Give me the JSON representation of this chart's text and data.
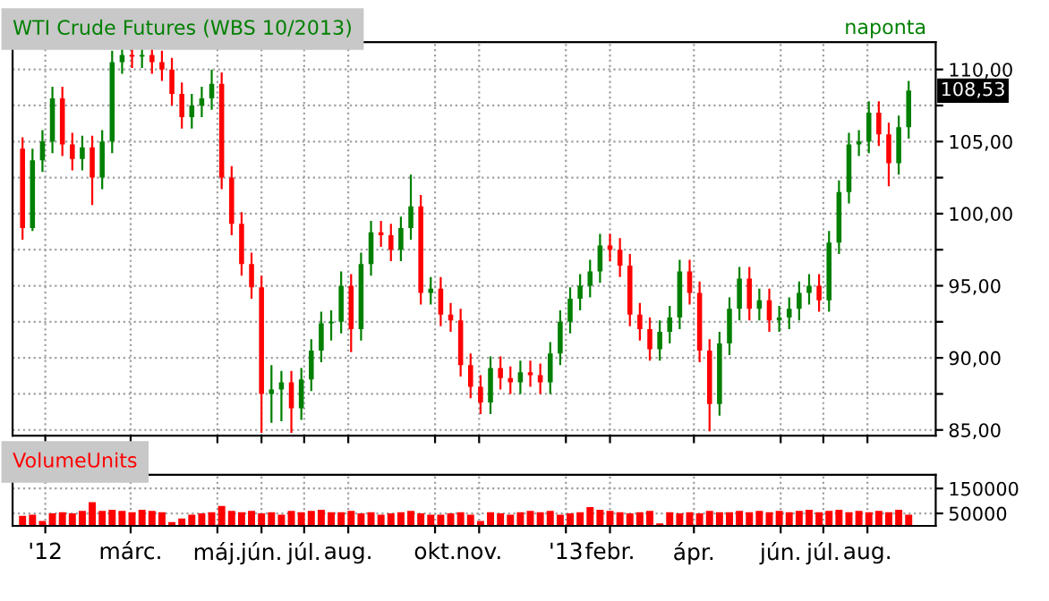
{
  "chart_data": [
    {
      "type": "candlestick",
      "title": "WTI Crude Futures (WBS 10/2013)",
      "annotations": [
        "naponta",
        {
          "text": "108,53",
          "x": "2013-08-30",
          "y": 108.53
        }
      ],
      "x": [
        "2011-12-16",
        "2011-12-23",
        "2011-12-30",
        "2012-01-06",
        "2012-01-13",
        "2012-01-20",
        "2012-01-27",
        "2012-02-03",
        "2012-02-10",
        "2012-02-17",
        "2012-02-24",
        "2012-03-02",
        "2012-03-09",
        "2012-03-16",
        "2012-03-23",
        "2012-03-30",
        "2012-04-06",
        "2012-04-13",
        "2012-04-20",
        "2012-04-27",
        "2012-05-04",
        "2012-05-11",
        "2012-05-18",
        "2012-05-25",
        "2012-06-01",
        "2012-06-08",
        "2012-06-15",
        "2012-06-22",
        "2012-06-29",
        "2012-07-06",
        "2012-07-13",
        "2012-07-20",
        "2012-07-27",
        "2012-08-03",
        "2012-08-10",
        "2012-08-17",
        "2012-08-24",
        "2012-08-31",
        "2012-09-07",
        "2012-09-14",
        "2012-09-21",
        "2012-09-28",
        "2012-10-05",
        "2012-10-12",
        "2012-10-19",
        "2012-10-26",
        "2012-11-02",
        "2012-11-09",
        "2012-11-16",
        "2012-11-23",
        "2012-11-30",
        "2012-12-07",
        "2012-12-14",
        "2012-12-21",
        "2012-12-28",
        "2013-01-04",
        "2013-01-11",
        "2013-01-18",
        "2013-01-25",
        "2013-02-01",
        "2013-02-08",
        "2013-02-15",
        "2013-02-22",
        "2013-03-01",
        "2013-03-08",
        "2013-03-15",
        "2013-03-22",
        "2013-03-29",
        "2013-04-05",
        "2013-04-12",
        "2013-04-19",
        "2013-04-26",
        "2013-05-03",
        "2013-05-10",
        "2013-05-17",
        "2013-05-24",
        "2013-05-31",
        "2013-06-07",
        "2013-06-14",
        "2013-06-21",
        "2013-06-28",
        "2013-07-05",
        "2013-07-12",
        "2013-07-19",
        "2013-07-26",
        "2013-08-02",
        "2013-08-09",
        "2013-08-16",
        "2013-08-23",
        "2013-08-30"
      ],
      "ohlc": [
        [
          104.5,
          105.3,
          98.2,
          99.0
        ],
        [
          99.0,
          104.5,
          98.8,
          103.7
        ],
        [
          103.7,
          105.8,
          102.9,
          105.0
        ],
        [
          105.0,
          108.8,
          104.2,
          108.0
        ],
        [
          108.0,
          108.8,
          104.0,
          104.8
        ],
        [
          104.8,
          105.6,
          103.0,
          103.8
        ],
        [
          103.8,
          105.4,
          103.0,
          104.6
        ],
        [
          104.6,
          105.4,
          100.6,
          102.5
        ],
        [
          102.5,
          105.8,
          101.7,
          105.0
        ],
        [
          105.0,
          111.3,
          104.2,
          110.5
        ],
        [
          110.5,
          111.4,
          109.7,
          111.0
        ],
        [
          111.0,
          111.4,
          110.1,
          110.9
        ],
        [
          110.9,
          111.4,
          110.1,
          111.0
        ],
        [
          111.0,
          111.4,
          109.7,
          110.5
        ],
        [
          110.5,
          111.3,
          109.2,
          110.0
        ],
        [
          110.0,
          110.8,
          107.5,
          108.3
        ],
        [
          108.3,
          109.1,
          105.9,
          106.7
        ],
        [
          106.7,
          108.3,
          105.9,
          107.5
        ],
        [
          107.5,
          108.8,
          106.7,
          108.0
        ],
        [
          108.0,
          110.0,
          107.2,
          109.0
        ],
        [
          109.0,
          109.8,
          101.7,
          102.5
        ],
        [
          102.5,
          103.3,
          98.5,
          99.3
        ],
        [
          99.3,
          100.1,
          95.7,
          96.5
        ],
        [
          96.5,
          97.3,
          94.1,
          94.9
        ],
        [
          94.9,
          95.7,
          84.8,
          87.5
        ],
        [
          87.5,
          89.5,
          85.5,
          87.8
        ],
        [
          87.8,
          89.1,
          85.6,
          88.3
        ],
        [
          88.3,
          89.1,
          84.8,
          86.5
        ],
        [
          86.5,
          89.3,
          85.7,
          88.5
        ],
        [
          88.5,
          91.3,
          87.7,
          90.5
        ],
        [
          90.5,
          93.2,
          89.7,
          92.4
        ],
        [
          92.4,
          93.3,
          91.2,
          92.5
        ],
        [
          92.5,
          96.0,
          91.7,
          95.0
        ],
        [
          95.0,
          95.8,
          90.4,
          92.0
        ],
        [
          92.0,
          97.3,
          91.2,
          96.5
        ],
        [
          96.5,
          99.5,
          95.7,
          98.7
        ],
        [
          98.7,
          99.5,
          97.7,
          98.5
        ],
        [
          98.5,
          99.3,
          96.7,
          97.5
        ],
        [
          97.5,
          99.8,
          96.7,
          99.0
        ],
        [
          99.0,
          102.7,
          98.2,
          100.5
        ],
        [
          100.5,
          101.3,
          93.7,
          94.5
        ],
        [
          94.5,
          95.6,
          93.7,
          94.8
        ],
        [
          94.8,
          95.6,
          92.2,
          93.0
        ],
        [
          93.0,
          93.8,
          91.8,
          92.6
        ],
        [
          92.6,
          93.4,
          88.7,
          89.5
        ],
        [
          89.5,
          90.3,
          87.2,
          88.0
        ],
        [
          88.0,
          88.8,
          86.1,
          86.9
        ],
        [
          86.9,
          90.1,
          86.1,
          89.3
        ],
        [
          89.3,
          90.1,
          87.8,
          88.6
        ],
        [
          88.6,
          89.4,
          87.5,
          88.3
        ],
        [
          88.3,
          89.8,
          87.5,
          89.0
        ],
        [
          89.0,
          89.8,
          88.0,
          88.8
        ],
        [
          88.8,
          89.6,
          87.5,
          88.3
        ],
        [
          88.3,
          91.1,
          87.5,
          90.3
        ],
        [
          90.3,
          93.3,
          89.5,
          92.5
        ],
        [
          92.5,
          94.9,
          91.7,
          94.1
        ],
        [
          94.1,
          95.8,
          93.3,
          95.0
        ],
        [
          95.0,
          96.8,
          94.2,
          96.0
        ],
        [
          96.0,
          98.6,
          95.2,
          97.8
        ],
        [
          97.8,
          98.6,
          96.7,
          97.5
        ],
        [
          97.5,
          98.3,
          95.6,
          96.4
        ],
        [
          96.4,
          97.2,
          92.2,
          93.0
        ],
        [
          93.0,
          93.8,
          91.2,
          92.0
        ],
        [
          92.0,
          92.8,
          89.8,
          90.6
        ],
        [
          90.6,
          92.6,
          89.8,
          91.8
        ],
        [
          91.8,
          93.6,
          91.0,
          92.8
        ],
        [
          92.8,
          96.8,
          92.0,
          96.0
        ],
        [
          96.0,
          96.8,
          93.7,
          94.5
        ],
        [
          94.5,
          95.3,
          89.7,
          90.5
        ],
        [
          90.5,
          91.3,
          84.9,
          86.8
        ],
        [
          86.8,
          91.8,
          86.0,
          91.0
        ],
        [
          91.0,
          94.2,
          90.2,
          93.4
        ],
        [
          93.4,
          96.3,
          92.6,
          95.5
        ],
        [
          95.5,
          96.3,
          92.6,
          93.4
        ],
        [
          93.4,
          94.8,
          92.6,
          94.0
        ],
        [
          94.0,
          94.8,
          91.8,
          92.6
        ],
        [
          92.6,
          93.6,
          91.8,
          92.8
        ],
        [
          92.8,
          94.2,
          92.0,
          93.4
        ],
        [
          93.4,
          95.3,
          92.6,
          94.5
        ],
        [
          94.5,
          95.8,
          93.7,
          95.0
        ],
        [
          95.0,
          95.8,
          93.2,
          94.0
        ],
        [
          94.0,
          98.8,
          93.2,
          98.0
        ],
        [
          98.0,
          102.3,
          97.2,
          101.5
        ],
        [
          101.5,
          105.6,
          100.7,
          104.8
        ],
        [
          104.8,
          105.8,
          104.0,
          105.0
        ],
        [
          105.0,
          107.8,
          104.2,
          107.0
        ],
        [
          107.0,
          107.8,
          104.7,
          105.5
        ],
        [
          105.5,
          106.3,
          101.9,
          103.5
        ],
        [
          103.5,
          106.8,
          102.7,
          106.0
        ],
        [
          106.0,
          109.2,
          105.2,
          108.53
        ]
      ],
      "colors": [
        "#ff0000",
        "#008000",
        "#008000",
        "#008000",
        "#ff0000",
        "#ff0000",
        "#008000",
        "#ff0000",
        "#008000",
        "#008000",
        "#008000",
        "#ff0000",
        "#008000",
        "#ff0000",
        "#ff0000",
        "#ff0000",
        "#ff0000",
        "#008000",
        "#008000",
        "#008000",
        "#ff0000",
        "#ff0000",
        "#ff0000",
        "#ff0000",
        "#ff0000",
        "#008000",
        "#008000",
        "#ff0000",
        "#008000",
        "#008000",
        "#008000",
        "#008000",
        "#008000",
        "#ff0000",
        "#008000",
        "#008000",
        "#ff0000",
        "#ff0000",
        "#008000",
        "#008000",
        "#ff0000",
        "#008000",
        "#ff0000",
        "#ff0000",
        "#ff0000",
        "#ff0000",
        "#ff0000",
        "#008000",
        "#ff0000",
        "#ff0000",
        "#008000",
        "#ff0000",
        "#ff0000",
        "#008000",
        "#008000",
        "#008000",
        "#008000",
        "#008000",
        "#008000",
        "#ff0000",
        "#ff0000",
        "#ff0000",
        "#ff0000",
        "#ff0000",
        "#008000",
        "#008000",
        "#008000",
        "#ff0000",
        "#ff0000",
        "#ff0000",
        "#008000",
        "#008000",
        "#008000",
        "#ff0000",
        "#008000",
        "#ff0000",
        "#008000",
        "#008000",
        "#008000",
        "#008000",
        "#ff0000",
        "#008000",
        "#008000",
        "#008000",
        "#008000",
        "#008000",
        "#ff0000",
        "#ff0000",
        "#008000",
        "#008000"
      ],
      "xlim": [
        "2011-12-09",
        "2013-09-18"
      ],
      "ylim": [
        84.6,
        111.9
      ],
      "yticks": [
        {
          "value": 85,
          "label": "85,00"
        },
        {
          "value": 87.5,
          "label": null
        },
        {
          "value": 90,
          "label": "90,00"
        },
        {
          "value": 92.5,
          "label": null
        },
        {
          "value": 95,
          "label": "95,00"
        },
        {
          "value": 97.5,
          "label": null
        },
        {
          "value": 100,
          "label": "100,00"
        },
        {
          "value": 102.5,
          "label": null
        },
        {
          "value": 105,
          "label": "105,00"
        },
        {
          "value": 107.5,
          "label": null
        },
        {
          "value": 110,
          "label": "110,00"
        }
      ],
      "xticks": [
        {
          "value": "2012-01-01",
          "label": null
        },
        {
          "value": "2012-03-01",
          "label": null
        },
        {
          "value": "2012-05-01",
          "label": null
        },
        {
          "value": "2012-06-01",
          "label": null
        },
        {
          "value": "2012-07-01",
          "label": null
        },
        {
          "value": "2012-08-01",
          "label": null
        },
        {
          "value": "2012-10-01",
          "label": null
        },
        {
          "value": "2012-11-01",
          "label": null
        },
        {
          "value": "2013-01-01",
          "label": null
        },
        {
          "value": "2013-02-01",
          "label": null
        },
        {
          "value": "2013-04-01",
          "label": null
        },
        {
          "value": "2013-06-01",
          "label": null
        },
        {
          "value": "2013-07-01",
          "label": null
        },
        {
          "value": "2013-08-01",
          "label": null
        }
      ],
      "tick_labels": "y",
      "grid": true
    },
    {
      "type": "bar",
      "title": "VolumeUnits",
      "x": [
        "2011-12-16",
        "2011-12-23",
        "2011-12-30",
        "2012-01-06",
        "2012-01-13",
        "2012-01-20",
        "2012-01-27",
        "2012-02-03",
        "2012-02-10",
        "2012-02-17",
        "2012-02-24",
        "2012-03-02",
        "2012-03-09",
        "2012-03-16",
        "2012-03-23",
        "2012-03-30",
        "2012-04-06",
        "2012-04-13",
        "2012-04-20",
        "2012-04-27",
        "2012-05-04",
        "2012-05-11",
        "2012-05-18",
        "2012-05-25",
        "2012-06-01",
        "2012-06-08",
        "2012-06-15",
        "2012-06-22",
        "2012-06-29",
        "2012-07-06",
        "2012-07-13",
        "2012-07-20",
        "2012-07-27",
        "2012-08-03",
        "2012-08-10",
        "2012-08-17",
        "2012-08-24",
        "2012-08-31",
        "2012-09-07",
        "2012-09-14",
        "2012-09-21",
        "2012-09-28",
        "2012-10-05",
        "2012-10-12",
        "2012-10-19",
        "2012-10-26",
        "2012-11-02",
        "2012-11-09",
        "2012-11-16",
        "2012-11-23",
        "2012-11-30",
        "2012-12-07",
        "2012-12-14",
        "2012-12-21",
        "2012-12-28",
        "2013-01-04",
        "2013-01-11",
        "2013-01-18",
        "2013-01-25",
        "2013-02-01",
        "2013-02-08",
        "2013-02-15",
        "2013-02-22",
        "2013-03-01",
        "2013-03-08",
        "2013-03-15",
        "2013-03-22",
        "2013-03-29",
        "2013-04-05",
        "2013-04-12",
        "2013-04-19",
        "2013-04-26",
        "2013-05-03",
        "2013-05-10",
        "2013-05-17",
        "2013-05-24",
        "2013-05-31",
        "2013-06-07",
        "2013-06-14",
        "2013-06-21",
        "2013-06-28",
        "2013-07-05",
        "2013-07-12",
        "2013-07-19",
        "2013-07-26",
        "2013-08-02",
        "2013-08-09",
        "2013-08-16",
        "2013-08-23",
        "2013-08-30"
      ],
      "values": [
        40000,
        45000,
        20000,
        50000,
        55000,
        50000,
        60000,
        95000,
        60000,
        65000,
        60000,
        55000,
        65000,
        60000,
        55000,
        15000,
        30000,
        45000,
        50000,
        55000,
        80000,
        60000,
        55000,
        60000,
        50000,
        55000,
        45000,
        60000,
        55000,
        60000,
        65000,
        55000,
        55000,
        60000,
        50000,
        55000,
        45000,
        50000,
        55000,
        60000,
        50000,
        45000,
        45000,
        50000,
        55000,
        45000,
        20000,
        55000,
        50000,
        45000,
        55000,
        60000,
        55000,
        60000,
        45000,
        50000,
        55000,
        75000,
        65000,
        60000,
        55000,
        50000,
        55000,
        60000,
        10000,
        55000,
        50000,
        55000,
        50000,
        60000,
        55000,
        55000,
        60000,
        55000,
        60000,
        55000,
        60000,
        55000,
        60000,
        65000,
        55000,
        60000,
        65000,
        55000,
        60000,
        55000,
        60000,
        55000,
        65000,
        45000
      ],
      "color": "#ff0000",
      "xlim": [
        "2011-12-09",
        "2013-09-18"
      ],
      "ylim": [
        0,
        205000
      ],
      "yticks": [
        50000,
        150000
      ],
      "xticks": [
        {
          "value": "2012-01-01",
          "label": "'12"
        },
        {
          "value": "2012-03-01",
          "label": "márc."
        },
        {
          "value": "2012-05-01",
          "label": "máj."
        },
        {
          "value": "2012-06-01",
          "label": "jún."
        },
        {
          "value": "2012-07-01",
          "label": "júl."
        },
        {
          "value": "2012-08-01",
          "label": "aug."
        },
        {
          "value": "2012-10-01",
          "label": "okt."
        },
        {
          "value": "2012-11-01",
          "label": "nov."
        },
        {
          "value": "2013-01-01",
          "label": "'13"
        },
        {
          "value": "2013-02-01",
          "label": "febr."
        },
        {
          "value": "2013-04-01",
          "label": "ápr."
        },
        {
          "value": "2013-06-01",
          "label": "jún."
        },
        {
          "value": "2013-07-01",
          "label": "júl."
        },
        {
          "value": "2013-08-01",
          "label": "aug."
        }
      ],
      "grid": true
    }
  ]
}
